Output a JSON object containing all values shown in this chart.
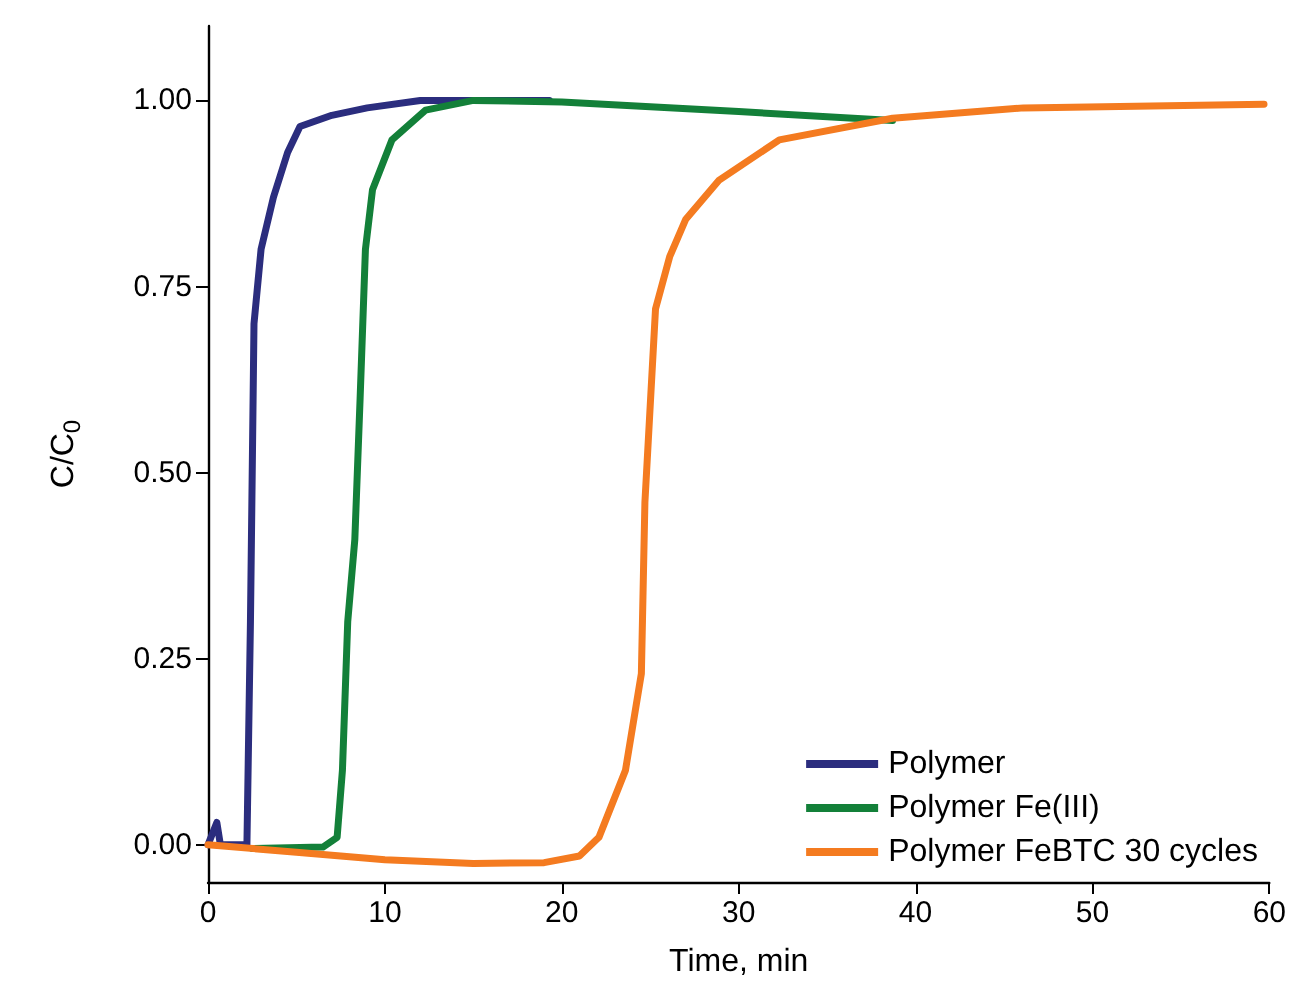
{
  "chart_data": {
    "type": "line",
    "xlabel": "Time, min",
    "ylabel": "C/C$_{0}$",
    "xlim": [
      0,
      60
    ],
    "xticks": [
      0,
      10,
      20,
      30,
      40,
      50,
      60
    ],
    "ylim": [
      -0.05,
      1.1
    ],
    "yticks": [
      {
        "value": 0,
        "label": "0.00"
      },
      {
        "value": 0.25,
        "label": "0.25"
      },
      {
        "value": 0.5,
        "label": "0.50"
      },
      {
        "value": 0.75,
        "label": "0.75"
      },
      {
        "value": 1,
        "label": "1.00"
      }
    ],
    "grid": false,
    "legend": "bottom right",
    "marker": "none",
    "line_style": "solid",
    "series": [
      {
        "name": "Polymer",
        "color": "#2b2d7e",
        "x": [
          0,
          0.5,
          0.7,
          2.2,
          2.4,
          2.6,
          3,
          3.7,
          4.5,
          5.2,
          7,
          9,
          12,
          19.3
        ],
        "values": [
          0,
          0.03,
          0,
          0,
          0.3,
          0.7,
          0.8,
          0.87,
          0.93,
          0.965,
          0.98,
          0.99,
          1.0,
          1.0
        ]
      },
      {
        "name": "Polymer Fe(III)",
        "color": "#138039",
        "x": [
          2.5,
          6.5,
          7.3,
          7.6,
          7.9,
          8.3,
          8.6,
          8.9,
          9.3,
          10.4,
          12.3,
          15,
          20,
          30,
          38.7
        ],
        "values": [
          -0.005,
          -0.003,
          0.01,
          0.1,
          0.3,
          0.41,
          0.6,
          0.8,
          0.88,
          0.947,
          0.987,
          1.0,
          0.998,
          0.985,
          0.973
        ]
      },
      {
        "name": "Polymer FeBTC 30 cycles",
        "color": "#f47b20",
        "x": [
          0,
          5,
          10,
          15,
          19,
          21,
          22.1,
          23.6,
          24.5,
          24.7,
          25.3,
          26.1,
          27,
          28.9,
          32.3,
          38.7,
          46.1,
          59.7
        ],
        "values": [
          0,
          -0.01,
          -0.02,
          -0.025,
          -0.024,
          -0.015,
          0.01,
          0.1,
          0.23,
          0.46,
          0.72,
          0.79,
          0.84,
          0.893,
          0.947,
          0.976,
          0.99,
          0.995
        ]
      }
    ]
  }
}
